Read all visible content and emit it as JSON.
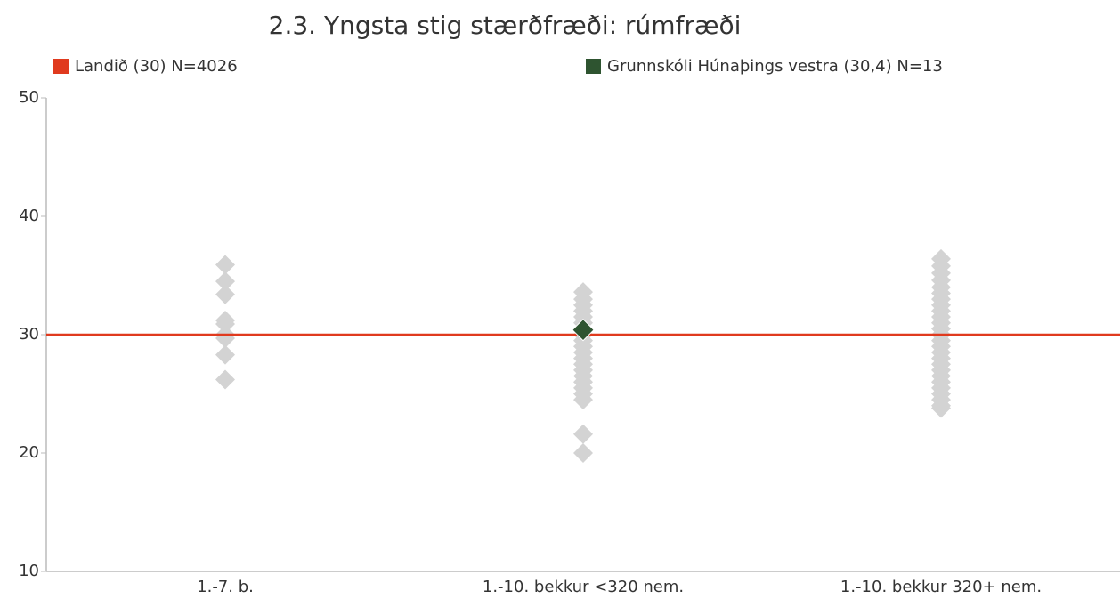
{
  "chart_data": {
    "type": "strip",
    "title": "2.3. Yngsta stig stærðfræði: rúmfræði",
    "categories": [
      "1.-7. b.",
      "1.-10. bekkur <320 nem.",
      "1.-10. bekkur 320+ nem."
    ],
    "points": [
      [
        35.9,
        34.5,
        33.4,
        31.2,
        30.9,
        30,
        29.7,
        28.3,
        26.2
      ],
      [
        33.6,
        33.0,
        32.5,
        32.0,
        31.5,
        31.0,
        30.5,
        30.0,
        29.5,
        29.0,
        28.5,
        28.0,
        27.5,
        27.0,
        26.5,
        26.0,
        25.5,
        25.0,
        24.5,
        21.6,
        20.0
      ],
      [
        36.4,
        35.8,
        35.2,
        34.6,
        34.0,
        33.5,
        33.0,
        32.5,
        32.0,
        31.5,
        31.0,
        30.5,
        30.0,
        29.5,
        29.0,
        28.5,
        28.0,
        27.5,
        27.0,
        26.5,
        26.0,
        25.5,
        25.0,
        24.5,
        24.0,
        23.8
      ]
    ],
    "point_color": "#d3d3d3",
    "series": [
      {
        "name": "Landið (30) N=4026",
        "color": "#e03a1e",
        "kind": "line",
        "value": 30
      },
      {
        "name": "Grunnskóli Húnaþings vestra (30,4) N=13",
        "color": "#2e5430",
        "kind": "point",
        "category": 1,
        "value": 30.4
      }
    ],
    "ylim": [
      10,
      50
    ],
    "yticks": [
      10,
      20,
      30,
      40,
      50
    ]
  }
}
